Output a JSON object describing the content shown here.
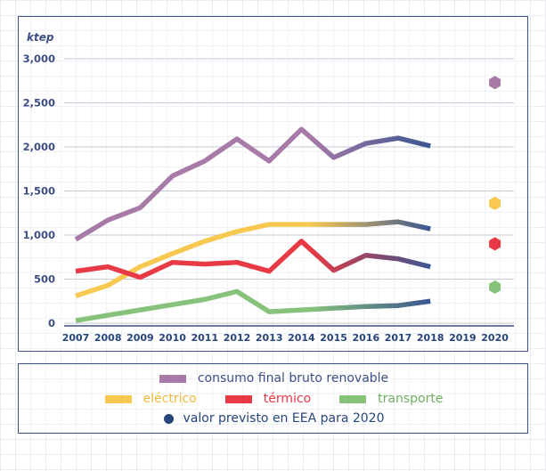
{
  "chart_data": {
    "type": "line",
    "unit_label": "ktep",
    "x": [
      "2007",
      "2008",
      "2009",
      "2010",
      "2011",
      "2012",
      "2013",
      "2014",
      "2015",
      "2016",
      "2017",
      "2018",
      "2019",
      "2020"
    ],
    "y_ticks": [
      "0",
      "500",
      "1,000",
      "1,500",
      "2,000",
      "2,500",
      "3,000"
    ],
    "ylim": [
      0,
      3000
    ],
    "grid": true,
    "series": [
      {
        "name": "consumo final bruto renovable",
        "color": "#a87aa8",
        "values": [
          950,
          1170,
          1310,
          1670,
          1840,
          2090,
          1840,
          2200,
          1880,
          2040,
          2100,
          2010,
          null,
          null
        ]
      },
      {
        "name": "eléctrico",
        "color": "#f8c850",
        "values": [
          310,
          430,
          640,
          790,
          930,
          1040,
          1120,
          1120,
          1120,
          1120,
          1150,
          1070,
          null,
          null
        ]
      },
      {
        "name": "térmico",
        "color": "#e83a44",
        "values": [
          590,
          640,
          520,
          690,
          670,
          690,
          590,
          930,
          600,
          770,
          730,
          640,
          null,
          null
        ]
      },
      {
        "name": "transporte",
        "color": "#87c27a",
        "values": [
          30,
          90,
          150,
          210,
          270,
          360,
          130,
          150,
          170,
          190,
          200,
          250,
          null,
          null
        ]
      }
    ],
    "targets_2020": [
      {
        "series": "consumo final bruto renovable",
        "value": 2730
      },
      {
        "series": "eléctrico",
        "value": 1360
      },
      {
        "name": "térmico",
        "series": "térmico",
        "value": 900
      },
      {
        "series": "transporte",
        "value": 410
      }
    ],
    "legend_target_label": "valor previsto en EEA para 2020",
    "legend_target_color": "#26457a",
    "fade_color": "#3a5690"
  },
  "legend": {
    "total_label": "consumo final bruto renovable",
    "electrico_label": "eléctrico",
    "termico_label": "térmico",
    "transporte_label": "transporte",
    "target_label": "valor previsto en EEA para 2020"
  }
}
